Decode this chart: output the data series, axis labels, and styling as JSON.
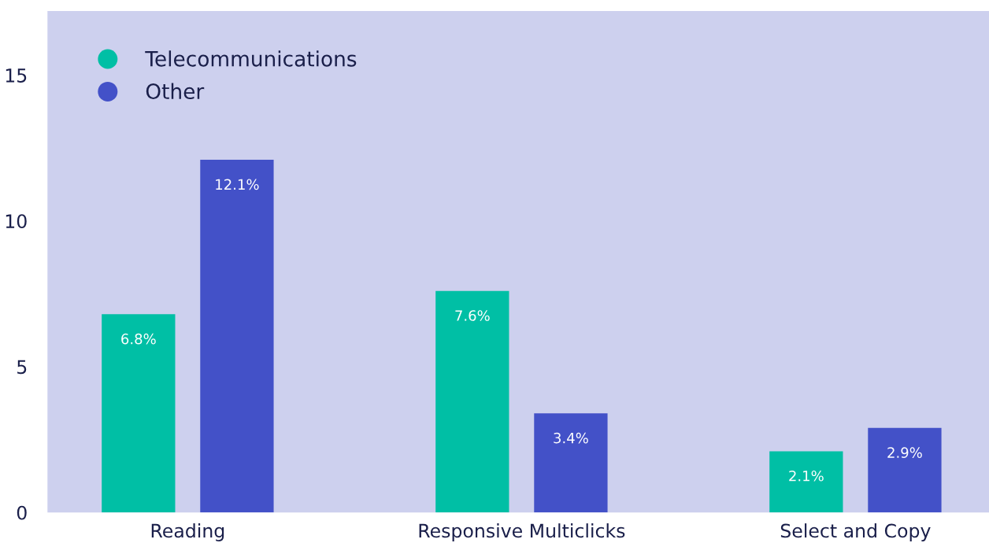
{
  "chart_data": {
    "type": "bar",
    "categories": [
      "Reading",
      "Responsive Multiclicks",
      "Select and Copy"
    ],
    "series": [
      {
        "name": "Telecommunications",
        "color": "#00bfa5",
        "values": [
          6.8,
          7.6,
          2.1
        ]
      },
      {
        "name": "Other",
        "color": "#4351c8",
        "values": [
          12.1,
          3.4,
          2.9
        ]
      }
    ],
    "value_labels": [
      [
        "6.8%",
        "7.6%",
        "2.1%"
      ],
      [
        "12.1%",
        "3.4%",
        "2.9%"
      ]
    ],
    "ylim": [
      0,
      17.2
    ],
    "yticks": [
      0,
      5,
      10,
      15
    ],
    "grid": false,
    "legend": "top left"
  }
}
